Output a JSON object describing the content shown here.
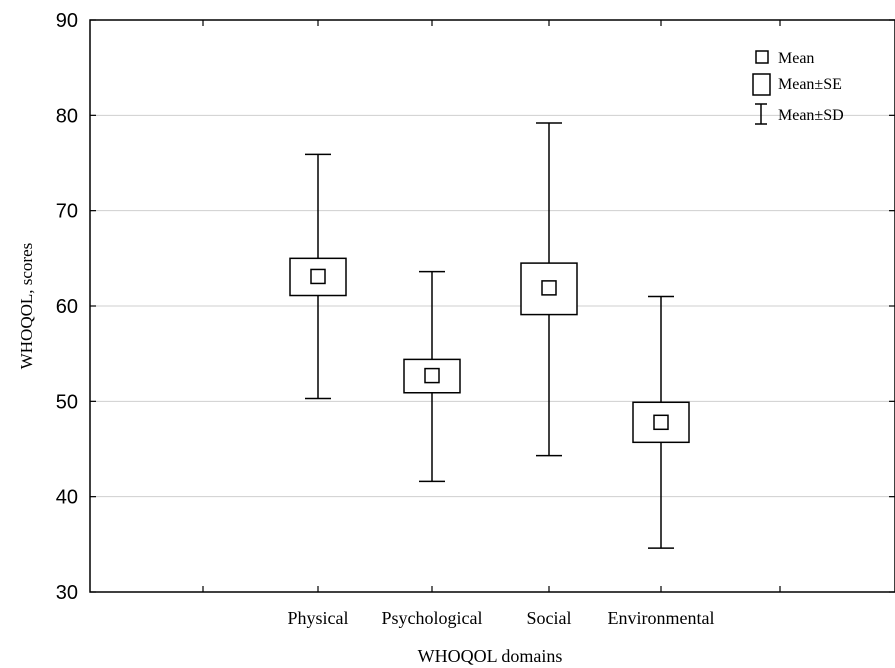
{
  "chart_data": {
    "type": "box",
    "title": "",
    "xlabel": "WHOQOL domains",
    "ylabel": "WHOQOL, scores",
    "ylim": [
      30,
      90
    ],
    "yticks": [
      30,
      40,
      50,
      60,
      70,
      80,
      90
    ],
    "grid": true,
    "legend_position": "top-right",
    "categories": [
      "Physical",
      "Psychological",
      "Social",
      "Environmental"
    ],
    "series": [
      {
        "mean": 63.1,
        "se_low": 61.1,
        "se_high": 65.0,
        "sd_low": 50.3,
        "sd_high": 75.9
      },
      {
        "mean": 52.7,
        "se_low": 50.9,
        "se_high": 54.4,
        "sd_low": 41.6,
        "sd_high": 63.6
      },
      {
        "mean": 61.9,
        "se_low": 59.1,
        "se_high": 64.5,
        "sd_low": 44.3,
        "sd_high": 79.2
      },
      {
        "mean": 47.8,
        "se_low": 45.7,
        "se_high": 49.9,
        "sd_low": 34.6,
        "sd_high": 61.0
      }
    ],
    "legend": {
      "mean": "Mean",
      "se": "Mean±SE",
      "sd": "Mean±SD"
    }
  }
}
